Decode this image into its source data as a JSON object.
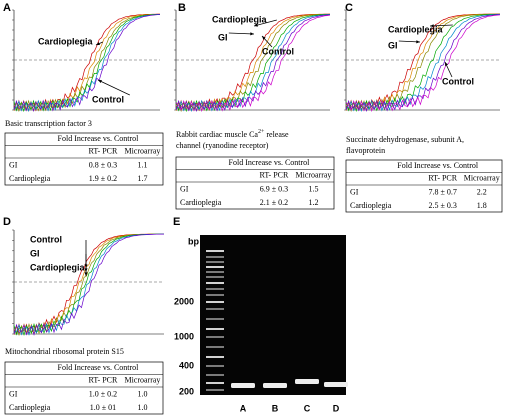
{
  "panels": [
    {
      "label": "A",
      "annotations": [
        "Cardioplegia",
        "Control"
      ],
      "caption": [
        "Basic transcription factor 3"
      ],
      "table": {
        "header": "Fold Increase vs. Control",
        "columns": [
          "RT- PCR",
          "Microarray"
        ],
        "rows": [
          [
            "GI",
            "0.8 ± 0.3",
            "1.1"
          ],
          [
            "Cardioplegia",
            "1.9 ± 0.2",
            "1.7"
          ]
        ]
      }
    },
    {
      "label": "B",
      "annotations": [
        "Cardioplegia",
        "GI",
        "Control"
      ],
      "caption": [
        "Rabbit cardiac muscle Ca",
        "2+",
        " release",
        "channel (ryanodine receptor)"
      ],
      "table": {
        "header": "Fold Increase vs. Control",
        "columns": [
          "RT- PCR",
          "Microarray"
        ],
        "rows": [
          [
            "GI",
            "6.9 ± 0.3",
            "1.5"
          ],
          [
            "Cardioplegia",
            "2.1 ± 0.2",
            "1.2"
          ]
        ]
      }
    },
    {
      "label": "C",
      "annotations": [
        "Cardioplegia",
        "GI",
        "Control"
      ],
      "caption": [
        "Succinate dehydrogenase, subunit A,",
        "flavoprotein"
      ],
      "table": {
        "header": "Fold Increase vs. Control",
        "columns": [
          "RT- PCR",
          "Microarray"
        ],
        "rows": [
          [
            "GI",
            "7.8 ± 0.7",
            "2.2"
          ],
          [
            "Cardioplegia",
            "2.5 ± 0.3",
            "1.8"
          ]
        ]
      }
    },
    {
      "label": "D",
      "annotations": [
        "Control",
        "GI",
        "Cardioplegia"
      ],
      "caption": [
        "Mitochondrial ribosomal protein S15"
      ],
      "table": {
        "header": "Fold Increase vs. Control",
        "columns": [
          "RT- PCR",
          "Microarray"
        ],
        "rows": [
          [
            "GI",
            "1.0 ± 0.2",
            "1.0"
          ],
          [
            "Cardioplegia",
            "1.0 ± 01",
            "1.0"
          ]
        ]
      }
    }
  ],
  "gel": {
    "label": "E",
    "unit": "bp",
    "markers": [
      "2000",
      "1000",
      "400",
      "200"
    ],
    "lanes": [
      "A",
      "B",
      "C",
      "D"
    ]
  }
}
